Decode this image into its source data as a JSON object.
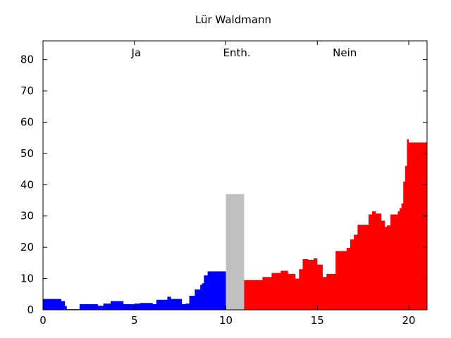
{
  "chart_data": {
    "type": "area",
    "title": "Lür Waldmann",
    "xlim": [
      0,
      21
    ],
    "ylim": [
      0,
      86
    ],
    "xticks": [
      0,
      5,
      10,
      15,
      20
    ],
    "yticks": [
      0,
      10,
      20,
      30,
      40,
      50,
      60,
      70,
      80
    ],
    "grid": false,
    "legend": "none",
    "annotations": [
      {
        "text": "Ja",
        "x": 5.1
      },
      {
        "text": "Enth.",
        "x": 10.6
      },
      {
        "text": "Nein",
        "x": 16.5
      }
    ],
    "series": [
      {
        "color": "#0000ff",
        "x": [
          0.0,
          0.5,
          1.0,
          1.2,
          1.3,
          1.6,
          2.0,
          2.5,
          3.0,
          3.3,
          3.7,
          4.0,
          4.4,
          4.7,
          5.0,
          5.3,
          5.6,
          6.0,
          6.2,
          6.5,
          6.8,
          7.0,
          7.3,
          7.6,
          7.8,
          8.0,
          8.3,
          8.5,
          8.6,
          8.7,
          8.8,
          9.0,
          9.3,
          9.6,
          10.0
        ],
        "values": [
          3.5,
          3.5,
          2.8,
          1.2,
          0.2,
          0.2,
          1.8,
          1.8,
          1.3,
          2.0,
          2.8,
          2.8,
          1.8,
          1.8,
          2.0,
          2.2,
          2.2,
          1.8,
          3.2,
          3.2,
          4.2,
          3.5,
          3.5,
          1.8,
          2.0,
          4.5,
          6.5,
          6.5,
          8.0,
          8.5,
          11.0,
          12.3,
          12.3,
          12.3,
          12.3
        ]
      },
      {
        "color": "#c0c0c0",
        "x": [
          10.0,
          11.0
        ],
        "values": [
          37,
          37
        ]
      },
      {
        "color": "#ff0000",
        "x": [
          11.0,
          11.5,
          12.0,
          12.5,
          13.0,
          13.4,
          13.8,
          14.0,
          14.2,
          14.5,
          14.8,
          15.0,
          15.3,
          15.5,
          16.0,
          16.4,
          16.6,
          16.8,
          17.0,
          17.2,
          17.5,
          17.8,
          18.0,
          18.2,
          18.5,
          18.7,
          18.8,
          19.0,
          19.2,
          19.4,
          19.5,
          19.6,
          19.7,
          19.8,
          19.9,
          20.0,
          20.2,
          20.5,
          21.0
        ],
        "values": [
          9.5,
          9.5,
          10.5,
          11.8,
          12.5,
          11.5,
          10.0,
          13.0,
          16.2,
          16.0,
          16.5,
          14.5,
          10.5,
          11.5,
          18.8,
          18.8,
          19.8,
          22.5,
          24.0,
          27.2,
          27.2,
          30.5,
          31.5,
          30.8,
          28.5,
          26.5,
          27.0,
          30.5,
          30.5,
          31.5,
          32.5,
          34.0,
          41.0,
          46.0,
          54.5,
          53.5,
          53.5,
          53.5,
          53.5
        ]
      }
    ]
  }
}
